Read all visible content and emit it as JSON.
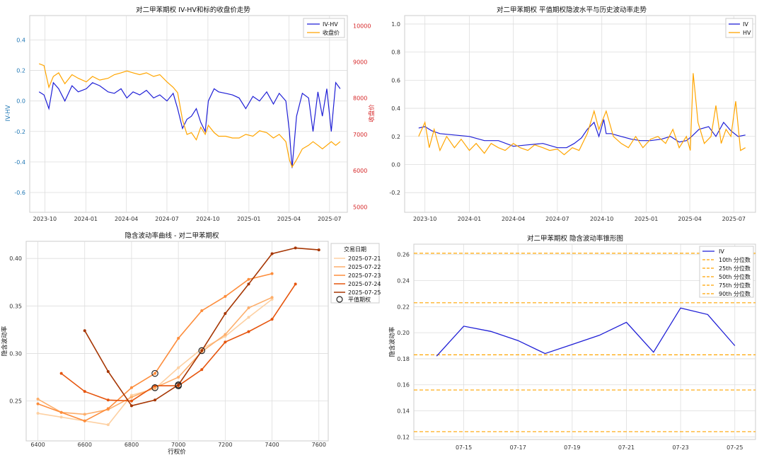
{
  "charts": {
    "c1": {
      "title": "对二甲苯期权 IV-HV和标的收盘价走势",
      "ylabel": "IV-HV",
      "y2label": "收盘价",
      "legend": [
        "IV-HV",
        "收盘价"
      ],
      "y_ticks": [
        "0.4",
        "0.2",
        "0.0",
        "-0.2",
        "-0.4",
        "-0.6"
      ],
      "y2_ticks": [
        "10000",
        "9000",
        "8000",
        "7000",
        "6000",
        "5000"
      ],
      "x_ticks": [
        "2023-10",
        "2024-01",
        "2024-04",
        "2024-07",
        "2024-10",
        "2025-01",
        "2025-04",
        "2025-07"
      ]
    },
    "c2": {
      "title": "对二甲苯期权 平值期权隐波水平与历史波动率走势",
      "legend": [
        "IV",
        "HV"
      ],
      "y_ticks": [
        "1.0",
        "0.8",
        "0.6",
        "0.4",
        "0.2",
        "0.0",
        "-0.2"
      ],
      "x_ticks": [
        "2023-10",
        "2024-01",
        "2024-04",
        "2024-07",
        "2024-10",
        "2025-01",
        "2025-04",
        "2025-07"
      ]
    },
    "c3": {
      "title": "隐含波动率曲线 - 对二甲苯期权",
      "xlabel": "行权价",
      "ylabel": "隐含波动率",
      "legend_title": "交易日期",
      "legend": [
        "2025-07-21",
        "2025-07-22",
        "2025-07-23",
        "2025-07-24",
        "2025-07-25",
        "平值期权"
      ],
      "y_ticks": [
        "0.40",
        "0.35",
        "0.30",
        "0.25"
      ],
      "x_ticks": [
        "6400",
        "6600",
        "6800",
        "7000",
        "7200",
        "7400",
        "7600"
      ]
    },
    "c4": {
      "title": "对二甲苯期权 隐含波动率锥形图",
      "ylabel": "隐含波动率",
      "legend": [
        "IV",
        "10th 分位数",
        "25th 分位数",
        "50th 分位数",
        "75th 分位数",
        "90th 分位数"
      ],
      "y_ticks": [
        "0.26",
        "0.24",
        "0.22",
        "0.20",
        "0.18",
        "0.16",
        "0.14",
        "0.12"
      ],
      "x_ticks": [
        "07-15",
        "07-17",
        "07-19",
        "07-21",
        "07-23",
        "07-25"
      ]
    }
  },
  "chart_data": [
    {
      "type": "line",
      "title": "对二甲苯期权 IV-HV和标的收盘价走势",
      "ylabel": "IV-HV",
      "y2label": "收盘价",
      "ylim": [
        -0.73,
        0.56
      ],
      "y2lim": [
        4850,
        10280
      ],
      "colors": {
        "IV-HV": "#1f1fd6",
        "收盘价": "#ffa500"
      },
      "series": [
        {
          "name": "IV-HV",
          "axis": "left",
          "x": [
            "2023-09-18",
            "2023-09-29",
            "2023-10-10",
            "2023-10-20",
            "2023-11-01",
            "2023-11-15",
            "2023-12-01",
            "2023-12-15",
            "2024-01-02",
            "2024-01-16",
            "2024-02-01",
            "2024-02-20",
            "2024-03-05",
            "2024-03-20",
            "2024-04-02",
            "2024-04-16",
            "2024-05-01",
            "2024-05-16",
            "2024-06-01",
            "2024-06-15",
            "2024-07-01",
            "2024-07-15",
            "2024-07-25",
            "2024-08-05",
            "2024-08-15",
            "2024-08-25",
            "2024-09-05",
            "2024-09-15",
            "2024-09-25",
            "2024-10-02",
            "2024-10-15",
            "2024-10-25",
            "2024-11-10",
            "2024-11-25",
            "2024-12-10",
            "2024-12-25",
            "2025-01-10",
            "2025-01-25",
            "2025-02-10",
            "2025-02-25",
            "2025-03-10",
            "2025-03-25",
            "2025-04-02",
            "2025-04-08",
            "2025-04-18",
            "2025-05-01",
            "2025-05-15",
            "2025-05-25",
            "2025-06-05",
            "2025-06-15",
            "2025-06-25",
            "2025-07-05",
            "2025-07-15",
            "2025-07-25"
          ],
          "y": [
            0.06,
            0.04,
            -0.05,
            0.12,
            0.08,
            0.0,
            0.1,
            0.06,
            0.08,
            0.12,
            0.1,
            0.06,
            0.05,
            0.08,
            0.02,
            0.06,
            0.04,
            0.07,
            0.02,
            0.04,
            0.0,
            0.05,
            -0.05,
            -0.18,
            -0.12,
            -0.1,
            -0.05,
            -0.14,
            -0.2,
            0.0,
            0.08,
            0.06,
            0.05,
            0.04,
            0.02,
            -0.05,
            0.03,
            0.0,
            0.06,
            -0.02,
            0.05,
            0.0,
            -0.2,
            -0.44,
            -0.1,
            0.05,
            0.02,
            -0.2,
            0.06,
            -0.1,
            0.08,
            -0.2,
            0.12,
            0.08
          ]
        },
        {
          "name": "收盘价",
          "axis": "right",
          "x": [
            "2023-09-18",
            "2023-09-29",
            "2023-10-10",
            "2023-10-20",
            "2023-11-01",
            "2023-11-15",
            "2023-12-01",
            "2023-12-15",
            "2024-01-02",
            "2024-01-16",
            "2024-02-01",
            "2024-02-20",
            "2024-03-05",
            "2024-03-20",
            "2024-04-02",
            "2024-04-16",
            "2024-05-01",
            "2024-05-16",
            "2024-06-01",
            "2024-06-15",
            "2024-07-01",
            "2024-07-15",
            "2024-07-25",
            "2024-08-05",
            "2024-08-15",
            "2024-08-25",
            "2024-09-05",
            "2024-09-15",
            "2024-09-25",
            "2024-10-02",
            "2024-10-15",
            "2024-10-25",
            "2024-11-10",
            "2024-11-25",
            "2024-12-10",
            "2024-12-25",
            "2025-01-10",
            "2025-01-25",
            "2025-02-10",
            "2025-02-25",
            "2025-03-10",
            "2025-03-25",
            "2025-04-02",
            "2025-04-08",
            "2025-04-18",
            "2025-05-01",
            "2025-05-15",
            "2025-05-25",
            "2025-06-05",
            "2025-06-15",
            "2025-06-25",
            "2025-07-05",
            "2025-07-15",
            "2025-07-25"
          ],
          "y": [
            8950,
            8900,
            8300,
            8600,
            8700,
            8400,
            8650,
            8550,
            8450,
            8600,
            8500,
            8550,
            8650,
            8700,
            8750,
            8700,
            8650,
            8700,
            8600,
            8650,
            8450,
            8300,
            8150,
            7400,
            7000,
            7050,
            6850,
            7200,
            7000,
            7250,
            7050,
            6950,
            6950,
            6900,
            6900,
            7000,
            6950,
            7100,
            7050,
            6900,
            7000,
            6800,
            6300,
            6100,
            6300,
            6600,
            6700,
            6800,
            6700,
            6600,
            6700,
            6800,
            6700,
            6800
          ]
        }
      ]
    },
    {
      "type": "line",
      "title": "对二甲苯期权 平值期权隐波水平与历史波动率走势",
      "ylim": [
        -0.34,
        1.06
      ],
      "colors": {
        "IV": "#1f1fd6",
        "HV": "#ffa500"
      },
      "series": [
        {
          "name": "IV",
          "x": [
            "2023-09-18",
            "2023-10-01",
            "2023-10-15",
            "2023-11-01",
            "2023-12-01",
            "2024-01-01",
            "2024-02-01",
            "2024-03-01",
            "2024-04-01",
            "2024-05-01",
            "2024-06-01",
            "2024-07-01",
            "2024-07-20",
            "2024-08-05",
            "2024-08-20",
            "2024-09-01",
            "2024-09-15",
            "2024-09-25",
            "2024-10-05",
            "2024-10-10",
            "2024-10-20",
            "2024-11-10",
            "2024-12-01",
            "2024-12-20",
            "2025-01-10",
            "2025-02-01",
            "2025-02-20",
            "2025-03-10",
            "2025-03-25",
            "2025-04-05",
            "2025-04-20",
            "2025-05-10",
            "2025-05-25",
            "2025-06-10",
            "2025-06-25",
            "2025-07-10",
            "2025-07-25"
          ],
          "y": [
            0.26,
            0.27,
            0.24,
            0.22,
            0.21,
            0.2,
            0.17,
            0.17,
            0.13,
            0.14,
            0.15,
            0.12,
            0.12,
            0.15,
            0.19,
            0.25,
            0.3,
            0.2,
            0.32,
            0.22,
            0.22,
            0.2,
            0.18,
            0.17,
            0.17,
            0.18,
            0.2,
            0.16,
            0.17,
            0.2,
            0.25,
            0.27,
            0.2,
            0.3,
            0.24,
            0.2,
            0.21
          ]
        },
        {
          "name": "HV",
          "x": [
            "2023-09-18",
            "2023-10-01",
            "2023-10-10",
            "2023-10-20",
            "2023-11-01",
            "2023-11-15",
            "2023-12-01",
            "2023-12-15",
            "2024-01-01",
            "2024-01-15",
            "2024-02-01",
            "2024-02-15",
            "2024-03-01",
            "2024-03-15",
            "2024-04-01",
            "2024-04-15",
            "2024-05-01",
            "2024-05-15",
            "2024-06-01",
            "2024-06-15",
            "2024-07-01",
            "2024-07-15",
            "2024-08-01",
            "2024-08-15",
            "2024-09-01",
            "2024-09-15",
            "2024-09-25",
            "2024-10-10",
            "2024-10-25",
            "2024-11-10",
            "2024-11-25",
            "2024-12-10",
            "2024-12-25",
            "2025-01-10",
            "2025-01-25",
            "2025-02-10",
            "2025-02-25",
            "2025-03-10",
            "2025-03-25",
            "2025-04-02",
            "2025-04-08",
            "2025-04-18",
            "2025-05-01",
            "2025-05-15",
            "2025-05-25",
            "2025-06-05",
            "2025-06-15",
            "2025-06-25",
            "2025-07-05",
            "2025-07-15",
            "2025-07-25"
          ],
          "y": [
            0.2,
            0.3,
            0.12,
            0.25,
            0.1,
            0.2,
            0.12,
            0.18,
            0.1,
            0.15,
            0.08,
            0.15,
            0.12,
            0.1,
            0.15,
            0.12,
            0.1,
            0.14,
            0.12,
            0.1,
            0.11,
            0.07,
            0.12,
            0.1,
            0.22,
            0.38,
            0.25,
            0.38,
            0.2,
            0.15,
            0.12,
            0.2,
            0.12,
            0.18,
            0.2,
            0.15,
            0.25,
            0.12,
            0.2,
            0.1,
            0.65,
            0.3,
            0.15,
            0.2,
            0.42,
            0.15,
            0.25,
            0.2,
            0.45,
            0.1,
            0.12
          ]
        }
      ]
    },
    {
      "type": "line",
      "title": "隐含波动率曲线 - 对二甲苯期权",
      "xlabel": "行权价",
      "ylabel": "隐含波动率",
      "xlim": [
        6350,
        7640
      ],
      "ylim": [
        0.208,
        0.418
      ],
      "legend_title": "交易日期",
      "series": [
        {
          "name": "2025-07-21",
          "color": "#fdd0a2",
          "x": [
            6400,
            6500,
            6600,
            6700,
            6800,
            6900,
            7000,
            7100,
            7200,
            7300,
            7400
          ],
          "y": [
            0.237,
            0.233,
            0.229,
            0.225,
            0.256,
            0.263,
            0.285,
            0.305,
            0.318,
            0.338,
            0.357
          ]
        },
        {
          "name": "2025-07-22",
          "color": "#fdae6b",
          "x": [
            6400,
            6500,
            6600,
            6700,
            6800,
            6900,
            7000,
            7100,
            7200,
            7300,
            7400
          ],
          "y": [
            0.252,
            0.238,
            0.236,
            0.241,
            0.254,
            0.264,
            0.275,
            0.302,
            0.32,
            0.348,
            0.359
          ]
        },
        {
          "name": "2025-07-23",
          "color": "#fd8d3c",
          "x": [
            6400,
            6500,
            6600,
            6700,
            6800,
            6900,
            7000,
            7100,
            7200,
            7300,
            7400
          ],
          "y": [
            0.247,
            0.238,
            0.229,
            0.242,
            0.264,
            0.279,
            0.316,
            0.345,
            0.36,
            0.378,
            0.384
          ]
        },
        {
          "name": "2025-07-24",
          "color": "#e6550d",
          "x": [
            6500,
            6600,
            6700,
            6800,
            6900,
            7000,
            7100,
            7200,
            7300,
            7400,
            7500
          ],
          "y": [
            0.279,
            0.26,
            0.251,
            0.25,
            0.266,
            0.266,
            0.283,
            0.312,
            0.323,
            0.336,
            0.373
          ]
        },
        {
          "name": "2025-07-25",
          "color": "#a63603",
          "x": [
            6600,
            6700,
            6800,
            6900,
            7000,
            7100,
            7200,
            7300,
            7400,
            7500,
            7600
          ],
          "y": [
            0.324,
            0.281,
            0.245,
            0.251,
            0.267,
            0.303,
            0.342,
            0.373,
            0.405,
            0.411,
            0.409
          ]
        }
      ],
      "atm_points": [
        {
          "x": 6900,
          "y": 0.279
        },
        {
          "x": 6900,
          "y": 0.264
        },
        {
          "x": 7000,
          "y": 0.266
        },
        {
          "x": 7000,
          "y": 0.267
        },
        {
          "x": 7100,
          "y": 0.303
        }
      ],
      "atm_label": "平值期权"
    },
    {
      "type": "line",
      "title": "对二甲苯期权 隐含波动率锥形图",
      "ylabel": "隐含波动率",
      "ylim": [
        0.118,
        0.268
      ],
      "x": [
        "07-14",
        "07-15",
        "07-16",
        "07-17",
        "07-18",
        "07-19",
        "07-20",
        "07-21",
        "07-22",
        "07-23",
        "07-24",
        "07-25"
      ],
      "series": [
        {
          "name": "IV",
          "color": "#1f1fd6",
          "values": [
            0.182,
            0.205,
            0.201,
            0.194,
            0.184,
            0.191,
            0.198,
            0.208,
            0.185,
            0.219,
            0.214,
            0.19
          ]
        }
      ],
      "quantiles": [
        {
          "name": "10th 分位数",
          "value": 0.124
        },
        {
          "name": "25th 分位数",
          "value": 0.156
        },
        {
          "name": "50th 分位数",
          "value": 0.183
        },
        {
          "name": "75th 分位数",
          "value": 0.223
        },
        {
          "name": "90th 分位数",
          "value": 0.261
        }
      ]
    }
  ]
}
